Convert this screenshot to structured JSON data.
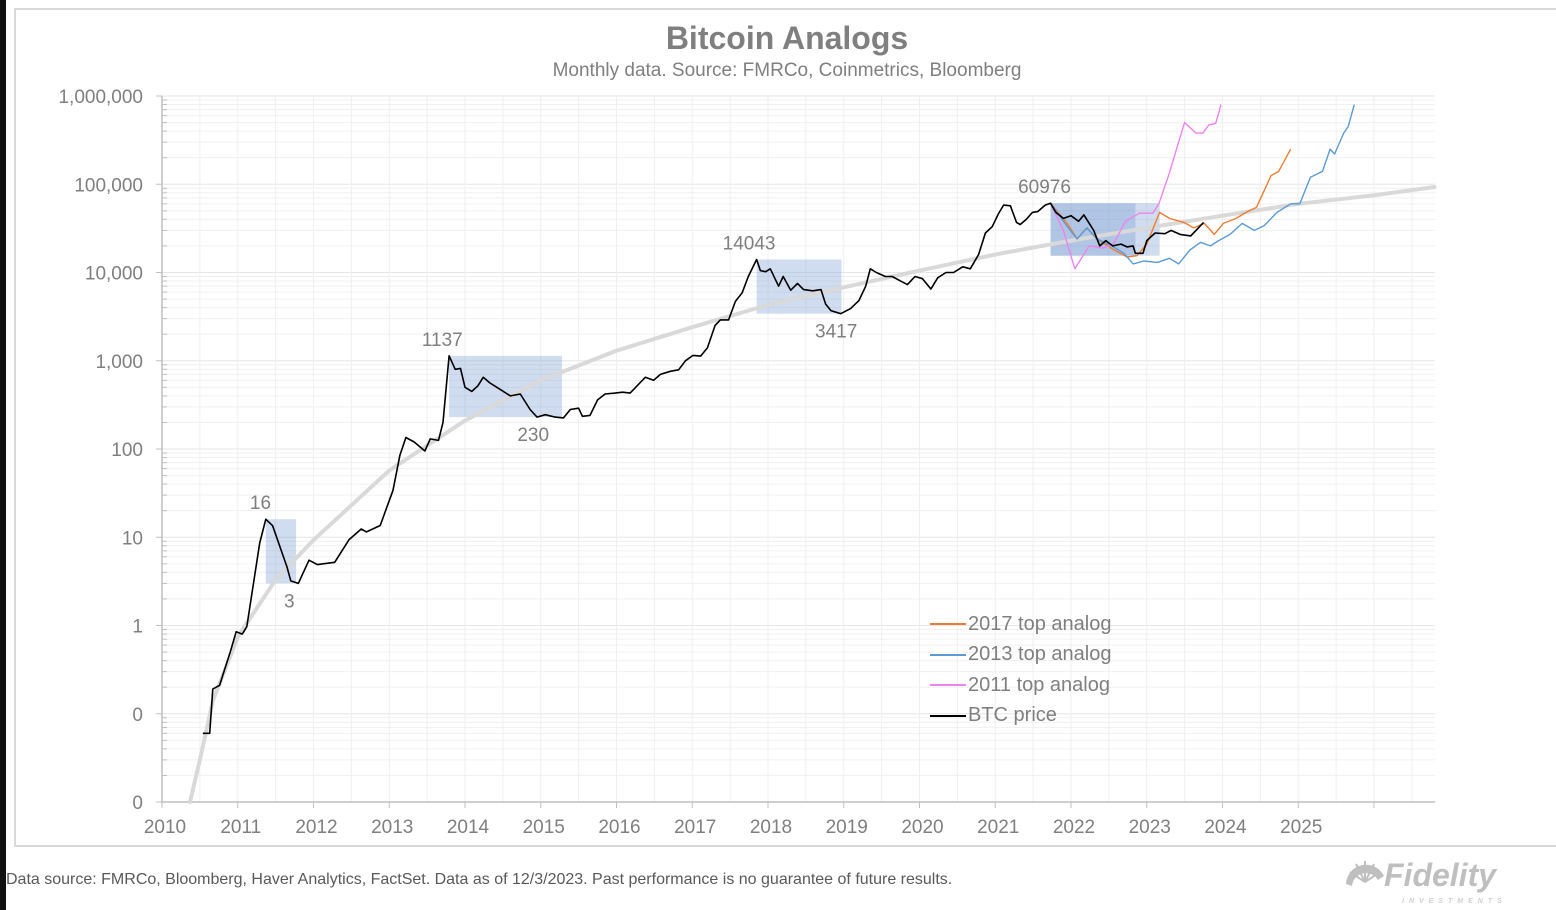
{
  "chart_data": {
    "type": "line",
    "title": "Bitcoin Analogs",
    "subtitle": "Monthly data.  Source: FMRCo, Coinmetrics, Bloomberg",
    "xlabel": "",
    "ylabel": "",
    "y_scale": "log",
    "xlim": [
      2010,
      2026.8
    ],
    "ylim": [
      0.01,
      1000000
    ],
    "grid": true,
    "legend_position": "bottom-right",
    "x_tick_labels": [
      "2010",
      "2011",
      "2012",
      "2013",
      "2014",
      "2015",
      "2016",
      "2017",
      "2018",
      "2019",
      "2020",
      "2021",
      "2022",
      "2023",
      "2024",
      "2025"
    ],
    "y_ticks": [
      1000000,
      100000,
      10000,
      1000,
      100,
      10,
      1,
      0.1,
      0.01
    ],
    "y_tick_labels": [
      "1,000,000",
      "100,000",
      "10,000",
      "1,000",
      "100",
      "10",
      "1",
      "0",
      "0"
    ],
    "series": [
      {
        "name": "2017 top analog",
        "color": "#ed7d31",
        "points": [
          [
            2021.73,
            60976
          ],
          [
            2021.95,
            36000
          ],
          [
            2022.08,
            24000
          ],
          [
            2022.21,
            32000
          ],
          [
            2022.34,
            24000
          ],
          [
            2022.57,
            18000
          ],
          [
            2022.74,
            15000
          ],
          [
            2022.87,
            15500
          ],
          [
            2023.0,
            21000
          ],
          [
            2023.17,
            48000
          ],
          [
            2023.3,
            41000
          ],
          [
            2023.49,
            37000
          ],
          [
            2023.62,
            32000
          ],
          [
            2023.76,
            36000
          ],
          [
            2023.89,
            27000
          ],
          [
            2024.01,
            36000
          ],
          [
            2024.18,
            41000
          ],
          [
            2024.31,
            48000
          ],
          [
            2024.45,
            55000
          ],
          [
            2024.64,
            125000
          ],
          [
            2024.74,
            140000
          ],
          [
            2024.9,
            250000
          ]
        ]
      },
      {
        "name": "2013 top analog",
        "color": "#5b9bd5",
        "points": [
          [
            2021.73,
            60976
          ],
          [
            2021.92,
            36000
          ],
          [
            2022.08,
            24000
          ],
          [
            2022.21,
            32000
          ],
          [
            2022.34,
            24000
          ],
          [
            2022.54,
            20000
          ],
          [
            2022.7,
            16500
          ],
          [
            2022.82,
            12500
          ],
          [
            2022.96,
            13500
          ],
          [
            2023.14,
            13000
          ],
          [
            2023.3,
            14500
          ],
          [
            2023.42,
            12500
          ],
          [
            2023.57,
            18000
          ],
          [
            2023.71,
            22000
          ],
          [
            2023.84,
            20000
          ],
          [
            2023.95,
            23000
          ],
          [
            2024.1,
            27000
          ],
          [
            2024.26,
            36000
          ],
          [
            2024.42,
            30000
          ],
          [
            2024.55,
            34000
          ],
          [
            2024.72,
            48000
          ],
          [
            2024.9,
            60000
          ],
          [
            2025.02,
            60000
          ],
          [
            2025.16,
            120000
          ],
          [
            2025.32,
            140000
          ],
          [
            2025.42,
            250000
          ],
          [
            2025.48,
            220000
          ],
          [
            2025.6,
            380000
          ],
          [
            2025.66,
            450000
          ],
          [
            2025.74,
            800000
          ]
        ]
      },
      {
        "name": "2011 top analog",
        "color": "#ee82ee",
        "points": [
          [
            2021.73,
            60976
          ],
          [
            2021.9,
            30000
          ],
          [
            2022.05,
            11000
          ],
          [
            2022.24,
            20000
          ],
          [
            2022.42,
            19000
          ],
          [
            2022.56,
            21000
          ],
          [
            2022.72,
            38000
          ],
          [
            2022.9,
            47000
          ],
          [
            2023.08,
            47000
          ],
          [
            2023.16,
            60000
          ],
          [
            2023.3,
            135000
          ],
          [
            2023.42,
            300000
          ],
          [
            2023.5,
            500000
          ],
          [
            2023.65,
            380000
          ],
          [
            2023.74,
            380000
          ],
          [
            2023.82,
            470000
          ],
          [
            2023.91,
            490000
          ],
          [
            2023.98,
            800000
          ]
        ]
      },
      {
        "name": "BTC price",
        "color": "#000000",
        "points": [
          [
            2010.54,
            0.06
          ],
          [
            2010.63,
            0.06
          ],
          [
            2010.67,
            0.19
          ],
          [
            2010.76,
            0.21
          ],
          [
            2010.9,
            0.5
          ],
          [
            2010.98,
            0.85
          ],
          [
            2011.06,
            0.8
          ],
          [
            2011.12,
            0.97
          ],
          [
            2011.29,
            8.6
          ],
          [
            2011.37,
            16
          ],
          [
            2011.46,
            13.5
          ],
          [
            2011.65,
            4.6
          ],
          [
            2011.7,
            3.2
          ],
          [
            2011.8,
            3.0
          ],
          [
            2011.94,
            5.5
          ],
          [
            2012.05,
            4.9
          ],
          [
            2012.28,
            5.2
          ],
          [
            2012.47,
            9.4
          ],
          [
            2012.63,
            12.4
          ],
          [
            2012.7,
            11.5
          ],
          [
            2012.88,
            13.6
          ],
          [
            2013.05,
            34
          ],
          [
            2013.14,
            85
          ],
          [
            2013.22,
            135
          ],
          [
            2013.33,
            120
          ],
          [
            2013.47,
            95
          ],
          [
            2013.54,
            130
          ],
          [
            2013.65,
            125
          ],
          [
            2013.71,
            200
          ],
          [
            2013.79,
            1137
          ],
          [
            2013.87,
            800
          ],
          [
            2013.94,
            820
          ],
          [
            2014.0,
            500
          ],
          [
            2014.09,
            450
          ],
          [
            2014.17,
            520
          ],
          [
            2014.24,
            650
          ],
          [
            2014.33,
            560
          ],
          [
            2014.47,
            470
          ],
          [
            2014.6,
            400
          ],
          [
            2014.73,
            420
          ],
          [
            2014.86,
            280
          ],
          [
            2014.95,
            230
          ],
          [
            2015.06,
            245
          ],
          [
            2015.19,
            230
          ],
          [
            2015.3,
            225
          ],
          [
            2015.39,
            280
          ],
          [
            2015.5,
            290
          ],
          [
            2015.55,
            235
          ],
          [
            2015.65,
            240
          ],
          [
            2015.75,
            360
          ],
          [
            2015.85,
            420
          ],
          [
            2015.98,
            430
          ],
          [
            2016.08,
            440
          ],
          [
            2016.18,
            430
          ],
          [
            2016.38,
            650
          ],
          [
            2016.49,
            600
          ],
          [
            2016.58,
            700
          ],
          [
            2016.71,
            760
          ],
          [
            2016.82,
            790
          ],
          [
            2016.91,
            1000
          ],
          [
            2017.01,
            1150
          ],
          [
            2017.11,
            1130
          ],
          [
            2017.2,
            1400
          ],
          [
            2017.3,
            2500
          ],
          [
            2017.37,
            2900
          ],
          [
            2017.48,
            2900
          ],
          [
            2017.57,
            4700
          ],
          [
            2017.66,
            5900
          ],
          [
            2017.74,
            9000
          ],
          [
            2017.85,
            14043
          ],
          [
            2017.9,
            10500
          ],
          [
            2017.97,
            10200
          ],
          [
            2018.03,
            11000
          ],
          [
            2018.14,
            7000
          ],
          [
            2018.2,
            9000
          ],
          [
            2018.3,
            6300
          ],
          [
            2018.39,
            7500
          ],
          [
            2018.47,
            6400
          ],
          [
            2018.59,
            6200
          ],
          [
            2018.7,
            6400
          ],
          [
            2018.76,
            4400
          ],
          [
            2018.83,
            3700
          ],
          [
            2018.96,
            3417
          ],
          [
            2019.09,
            3900
          ],
          [
            2019.2,
            4800
          ],
          [
            2019.29,
            7000
          ],
          [
            2019.35,
            11000
          ],
          [
            2019.43,
            10000
          ],
          [
            2019.55,
            9000
          ],
          [
            2019.64,
            9000
          ],
          [
            2019.75,
            8000
          ],
          [
            2019.84,
            7300
          ],
          [
            2019.94,
            9000
          ],
          [
            2020.04,
            8500
          ],
          [
            2020.15,
            6500
          ],
          [
            2020.24,
            8700
          ],
          [
            2020.35,
            10000
          ],
          [
            2020.45,
            10000
          ],
          [
            2020.57,
            11600
          ],
          [
            2020.67,
            11000
          ],
          [
            2020.78,
            16000
          ],
          [
            2020.87,
            28000
          ],
          [
            2020.96,
            33000
          ],
          [
            2021.04,
            46000
          ],
          [
            2021.11,
            58000
          ],
          [
            2021.2,
            57000
          ],
          [
            2021.28,
            37000
          ],
          [
            2021.33,
            35000
          ],
          [
            2021.41,
            40000
          ],
          [
            2021.49,
            48000
          ],
          [
            2021.56,
            49000
          ],
          [
            2021.66,
            58000
          ],
          [
            2021.73,
            60976
          ],
          [
            2021.8,
            48000
          ],
          [
            2021.9,
            41000
          ],
          [
            2022.0,
            44000
          ],
          [
            2022.1,
            38000
          ],
          [
            2022.17,
            45000
          ],
          [
            2022.3,
            30000
          ],
          [
            2022.38,
            20000
          ],
          [
            2022.46,
            23000
          ],
          [
            2022.55,
            20000
          ],
          [
            2022.66,
            21000
          ],
          [
            2022.74,
            19500
          ],
          [
            2022.82,
            20000
          ],
          [
            2022.85,
            16500
          ],
          [
            2022.95,
            16500
          ],
          [
            2023.0,
            23000
          ],
          [
            2023.11,
            28000
          ],
          [
            2023.24,
            27500
          ],
          [
            2023.32,
            30000
          ],
          [
            2023.44,
            27000
          ],
          [
            2023.58,
            26000
          ],
          [
            2023.75,
            37000
          ]
        ]
      }
    ],
    "trend": {
      "color": "#d9d9d9",
      "points": [
        [
          2010.37,
          0.01
        ],
        [
          2010.5,
          0.03
        ],
        [
          2010.67,
          0.14
        ],
        [
          2011.0,
          0.74
        ],
        [
          2011.5,
          3.3
        ],
        [
          2012.0,
          9.3
        ],
        [
          2013.0,
          57
        ],
        [
          2014.0,
          210
        ],
        [
          2015.0,
          600
        ],
        [
          2016.0,
          1300
        ],
        [
          2017.0,
          2400
        ],
        [
          2018.0,
          4300
        ],
        [
          2019.0,
          6800
        ],
        [
          2020.0,
          10500
        ],
        [
          2021.0,
          16000
        ],
        [
          2022.0,
          23000
        ],
        [
          2023.0,
          32000
        ],
        [
          2024.0,
          44000
        ],
        [
          2025.0,
          60000
        ],
        [
          2026.0,
          75000
        ],
        [
          2026.8,
          93000
        ]
      ]
    },
    "shaded_periods": [
      {
        "x": [
          2011.37,
          2011.77
        ],
        "y": [
          3,
          16
        ]
      },
      {
        "x": [
          2013.79,
          2015.28
        ],
        "y": [
          230,
          1137
        ]
      },
      {
        "x": [
          2017.85,
          2018.97
        ],
        "y": [
          3417,
          14043
        ]
      },
      {
        "x": [
          2021.73,
          2023.17
        ],
        "y": [
          15500,
          60976
        ]
      },
      {
        "x": [
          2021.73,
          2022.85
        ],
        "y": [
          15500,
          60976
        ]
      }
    ],
    "annotations": [
      {
        "text": "16",
        "x": 2011.3,
        "y": 16,
        "position": "above"
      },
      {
        "text": "3",
        "x": 2011.68,
        "y": 3,
        "position": "below"
      },
      {
        "text": "1137",
        "x": 2013.7,
        "y": 1137,
        "position": "above"
      },
      {
        "text": "230",
        "x": 2014.9,
        "y": 230,
        "position": "below"
      },
      {
        "text": "14043",
        "x": 2017.75,
        "y": 14043,
        "position": "above"
      },
      {
        "text": "3417",
        "x": 2018.9,
        "y": 3417,
        "position": "below"
      },
      {
        "text": "60976",
        "x": 2021.65,
        "y": 60976,
        "position": "above"
      }
    ]
  },
  "footer": "Data source: FMRCo, Bloomberg, Haver Analytics, FactSet. Data as of 12/3/2023. Past performance is no guarantee of future results.",
  "logo": {
    "text": "Fidelity",
    "subtext": "INVESTMENTS"
  }
}
